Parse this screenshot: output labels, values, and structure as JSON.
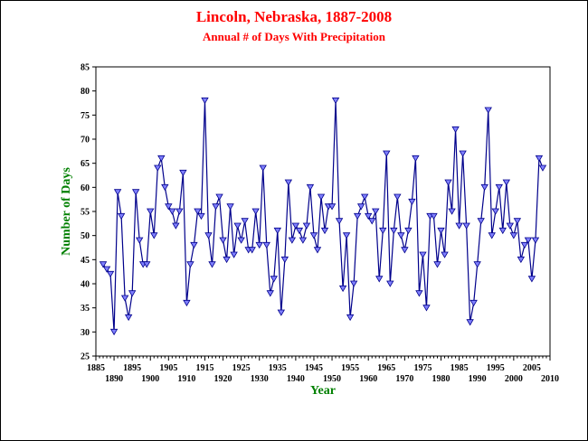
{
  "chart_data": {
    "type": "line",
    "title": "Lincoln, Nebraska, 1887-2008",
    "subtitle": "Annual # of Days With Precipitation",
    "xlabel": "Year",
    "ylabel": "Number of Days",
    "xlim": [
      1885,
      2010
    ],
    "ylim": [
      25,
      85
    ],
    "x_ticks_upper": [
      "1885",
      "1895",
      "1905",
      "1915",
      "1925",
      "1935",
      "1945",
      "1955",
      "1965",
      "1975",
      "1985",
      "1995",
      "2005"
    ],
    "x_ticks_lower": [
      "1890",
      "1900",
      "1910",
      "1920",
      "1930",
      "1940",
      "1950",
      "1960",
      "1970",
      "1980",
      "1990",
      "2000",
      "2010"
    ],
    "y_ticks": [
      "25",
      "30",
      "35",
      "40",
      "45",
      "50",
      "55",
      "60",
      "65",
      "70",
      "75",
      "80",
      "85"
    ],
    "grid": false,
    "line_color": "#00008b",
    "marker_color": "#8080ff",
    "series": [
      {
        "x": [
          1887,
          1888,
          1889,
          1890,
          1891,
          1892,
          1893,
          1894,
          1895,
          1896,
          1897,
          1898,
          1899,
          1900,
          1901,
          1902,
          1903,
          1904,
          1905,
          1906,
          1907,
          1908,
          1909,
          1910,
          1911,
          1912,
          1913,
          1914,
          1915,
          1916,
          1917,
          1918,
          1919,
          1920,
          1921,
          1922,
          1923,
          1924,
          1925,
          1926,
          1927,
          1928,
          1929,
          1930,
          1931,
          1932,
          1933,
          1934,
          1935,
          1936,
          1937,
          1938,
          1939,
          1940,
          1941,
          1942,
          1943,
          1944,
          1945,
          1946,
          1947,
          1948,
          1949,
          1950,
          1951,
          1952,
          1953,
          1954,
          1955,
          1956,
          1957,
          1958,
          1959,
          1960,
          1961,
          1962,
          1963,
          1964,
          1965,
          1966,
          1967,
          1968,
          1969,
          1970,
          1971,
          1972,
          1973,
          1974,
          1975,
          1976,
          1977,
          1978,
          1979,
          1980,
          1981,
          1982,
          1983,
          1984,
          1985,
          1986,
          1987,
          1988,
          1989,
          1990,
          1991,
          1992,
          1993,
          1994,
          1995,
          1996,
          1997,
          1998,
          1999,
          2000,
          2001,
          2002,
          2003,
          2004,
          2005,
          2006,
          2007,
          2008
        ],
        "y": [
          44,
          43,
          42,
          30,
          59,
          54,
          37,
          33,
          38,
          59,
          49,
          44,
          44,
          55,
          50,
          64,
          66,
          60,
          56,
          55,
          52,
          55,
          63,
          36,
          44,
          48,
          55,
          54,
          78,
          50,
          44,
          56,
          58,
          49,
          45,
          56,
          46,
          52,
          49,
          53,
          47,
          47,
          55,
          48,
          64,
          48,
          38,
          41,
          51,
          34,
          45,
          61,
          49,
          52,
          51,
          49,
          52,
          60,
          50,
          47,
          58,
          51,
          56,
          56,
          78,
          53,
          39,
          50,
          33,
          40,
          54,
          56,
          58,
          54,
          53,
          55,
          41,
          51,
          67,
          40,
          51,
          58,
          50,
          47,
          51,
          57,
          66,
          38,
          46,
          35,
          54,
          54,
          44,
          51,
          46,
          61,
          55,
          72,
          52,
          67,
          52,
          32,
          36,
          44,
          53,
          60,
          76,
          50,
          55,
          60,
          51,
          61,
          52,
          50,
          53,
          45,
          48,
          49,
          41,
          49,
          66,
          64
        ]
      }
    ]
  }
}
